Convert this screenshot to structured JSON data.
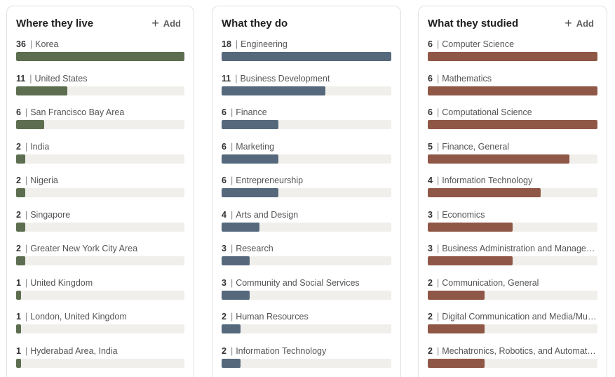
{
  "colors": {
    "live": "#5c6e4f",
    "do": "#56697c",
    "studied": "#8f5746"
  },
  "chart_data": [
    {
      "type": "bar",
      "title": "Where they live",
      "action_label": "Add",
      "color_key": "live",
      "max": 36,
      "categories": [
        "Korea",
        "United States",
        "San Francisco Bay Area",
        "India",
        "Nigeria",
        "Singapore",
        "Greater New York City Area",
        "United Kingdom",
        "London, United Kingdom",
        "Hyderabad Area, India"
      ],
      "values": [
        36,
        11,
        6,
        2,
        2,
        2,
        2,
        1,
        1,
        1
      ]
    },
    {
      "type": "bar",
      "title": "What they do",
      "action_label": "",
      "color_key": "do",
      "max": 18,
      "categories": [
        "Engineering",
        "Business Development",
        "Finance",
        "Marketing",
        "Entrepreneurship",
        "Arts and Design",
        "Research",
        "Community and Social Services",
        "Human Resources",
        "Information Technology"
      ],
      "values": [
        18,
        11,
        6,
        6,
        6,
        4,
        3,
        3,
        2,
        2
      ]
    },
    {
      "type": "bar",
      "title": "What they studied",
      "action_label": "Add",
      "color_key": "studied",
      "max": 6,
      "categories": [
        "Computer Science",
        "Mathematics",
        "Computational Science",
        "Finance, General",
        "Information Technology",
        "Economics",
        "Business Administration and Management",
        "Communication, General",
        "Digital Communication and Media/Multimedia",
        "Mechatronics, Robotics, and Automation"
      ],
      "values": [
        6,
        6,
        6,
        5,
        4,
        3,
        3,
        2,
        2,
        2
      ]
    }
  ]
}
